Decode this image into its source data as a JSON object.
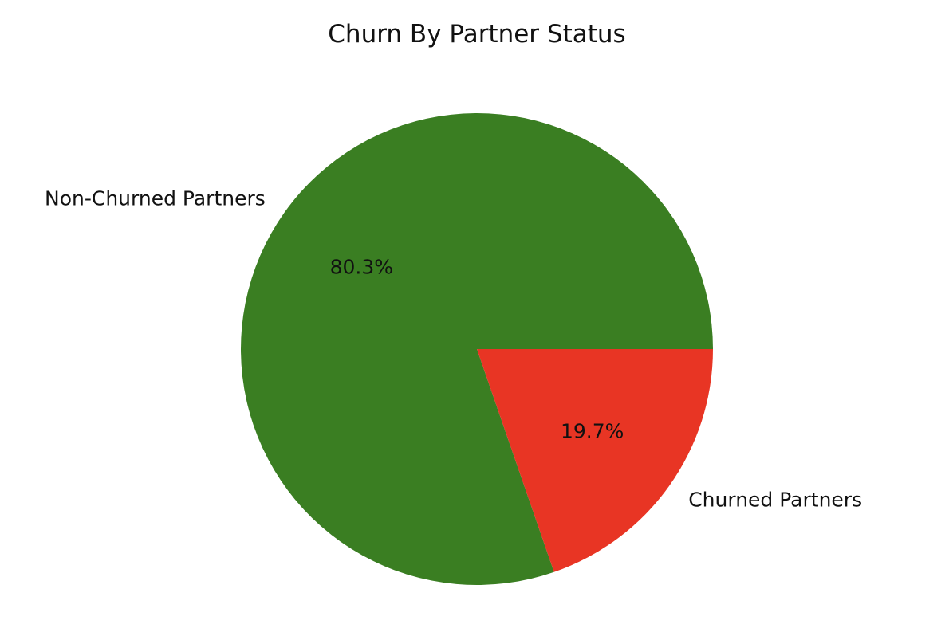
{
  "chart_data": {
    "type": "pie",
    "title": "Churn By Partner Status",
    "slices": [
      {
        "label": "Non-Churned Partners",
        "value": 80.3,
        "pct_label": "80.3%",
        "color": "#3a7e22"
      },
      {
        "label": "Churned Partners",
        "value": 19.7,
        "pct_label": "19.7%",
        "color": "#e83524"
      }
    ]
  }
}
